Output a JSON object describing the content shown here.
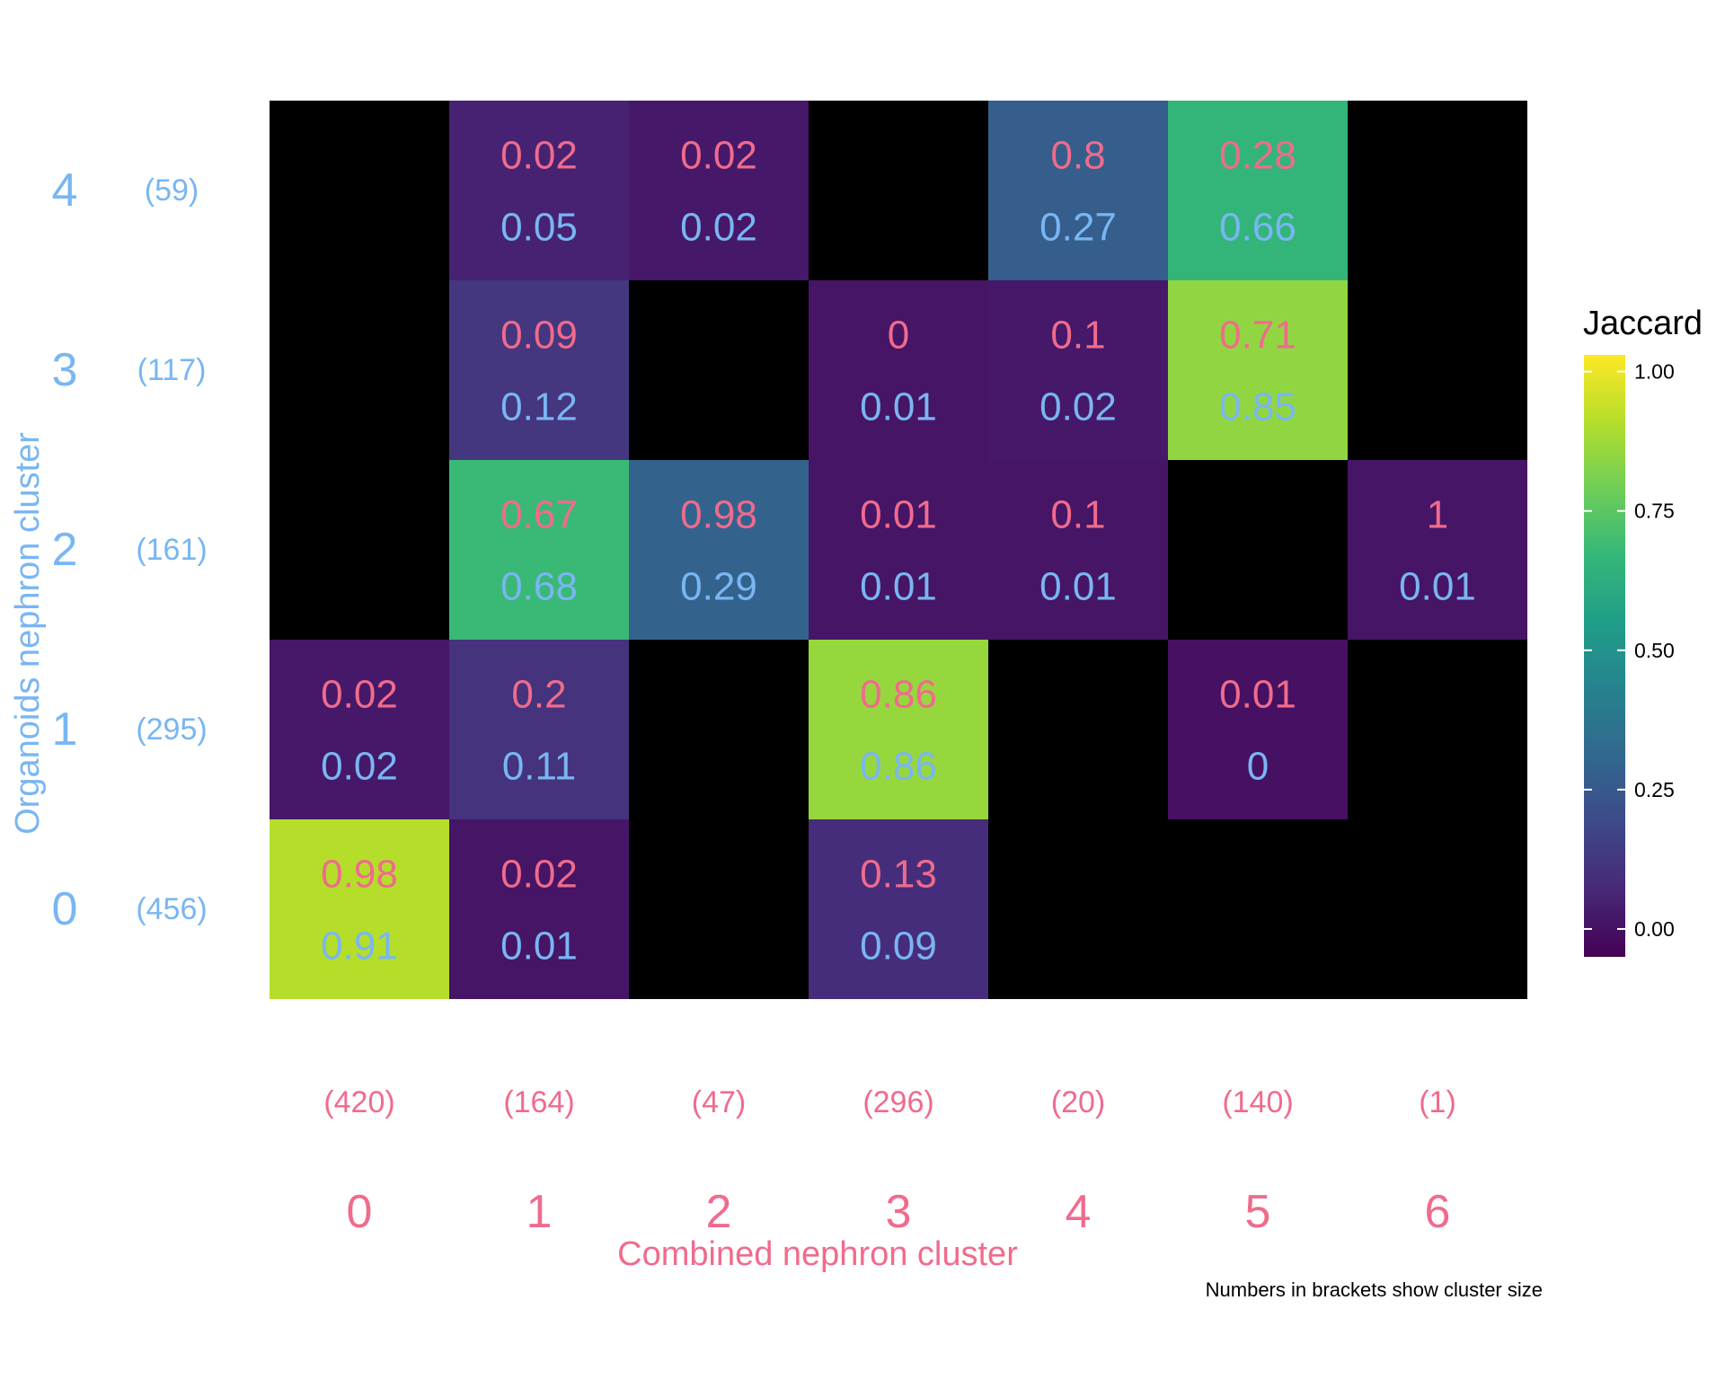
{
  "chart_data": {
    "type": "heatmap",
    "xlabel": "Combined nephron cluster",
    "ylabel": "Organoids nephron cluster",
    "x_categories": [
      "0",
      "1",
      "2",
      "3",
      "4",
      "5",
      "6"
    ],
    "x_sizes": [
      "(420)",
      "(164)",
      "(47)",
      "(296)",
      "(20)",
      "(140)",
      "(1)"
    ],
    "y_categories": [
      "0",
      "1",
      "2",
      "3",
      "4"
    ],
    "y_sizes": [
      "(456)",
      "(295)",
      "(161)",
      "(117)",
      "(59)"
    ],
    "legend": {
      "title": "Jaccard",
      "range": [
        -0.05,
        1.03
      ],
      "ticks": [
        {
          "value": 1.0,
          "label": "1.00"
        },
        {
          "value": 0.75,
          "label": "0.75"
        },
        {
          "value": 0.5,
          "label": "0.50"
        },
        {
          "value": 0.25,
          "label": "0.25"
        },
        {
          "value": 0.0,
          "label": "0.00"
        }
      ],
      "placement": "right"
    },
    "caption": "Numbers in brackets show cluster size",
    "cells": [
      {
        "x": "0",
        "y": "0",
        "value": 0.91,
        "top": "0.98",
        "bottom": "0.91"
      },
      {
        "x": "1",
        "y": "0",
        "value": 0.01,
        "top": "0.02",
        "bottom": "0.01"
      },
      {
        "x": "3",
        "y": "0",
        "value": 0.09,
        "top": "0.13",
        "bottom": "0.09"
      },
      {
        "x": "0",
        "y": "1",
        "value": 0.02,
        "top": "0.02",
        "bottom": "0.02"
      },
      {
        "x": "1",
        "y": "1",
        "value": 0.11,
        "top": "0.2",
        "bottom": "0.11"
      },
      {
        "x": "3",
        "y": "1",
        "value": 0.86,
        "top": "0.86",
        "bottom": "0.86"
      },
      {
        "x": "5",
        "y": "1",
        "value": 0.0,
        "top": "0.01",
        "bottom": "0"
      },
      {
        "x": "1",
        "y": "2",
        "value": 0.68,
        "top": "0.67",
        "bottom": "0.68"
      },
      {
        "x": "2",
        "y": "2",
        "value": 0.29,
        "top": "0.98",
        "bottom": "0.29"
      },
      {
        "x": "3",
        "y": "2",
        "value": 0.01,
        "top": "0.01",
        "bottom": "0.01"
      },
      {
        "x": "4",
        "y": "2",
        "value": 0.01,
        "top": "0.1",
        "bottom": "0.01"
      },
      {
        "x": "6",
        "y": "2",
        "value": 0.01,
        "top": "1",
        "bottom": "0.01"
      },
      {
        "x": "1",
        "y": "3",
        "value": 0.12,
        "top": "0.09",
        "bottom": "0.12"
      },
      {
        "x": "3",
        "y": "3",
        "value": 0.01,
        "top": "0",
        "bottom": "0.01"
      },
      {
        "x": "4",
        "y": "3",
        "value": 0.02,
        "top": "0.1",
        "bottom": "0.02"
      },
      {
        "x": "5",
        "y": "3",
        "value": 0.85,
        "top": "0.71",
        "bottom": "0.85"
      },
      {
        "x": "1",
        "y": "4",
        "value": 0.05,
        "top": "0.02",
        "bottom": "0.05"
      },
      {
        "x": "2",
        "y": "4",
        "value": 0.02,
        "top": "0.02",
        "bottom": "0.02"
      },
      {
        "x": "4",
        "y": "4",
        "value": 0.27,
        "top": "0.8",
        "bottom": "0.27"
      },
      {
        "x": "5",
        "y": "4",
        "value": 0.66,
        "top": "0.28",
        "bottom": "0.66"
      }
    ],
    "empty_cell_color": "#000000",
    "colors": {
      "x_axis_text": "#f06b8c",
      "y_axis_text": "#79b6f2",
      "top_value_text": "#f06b8c",
      "bottom_value_text": "#79b6f2",
      "viridis": [
        "#440154",
        "#482878",
        "#3e4989",
        "#31688e",
        "#26828e",
        "#1f9e89",
        "#35b779",
        "#6ece58",
        "#b5de2b",
        "#fde725"
      ]
    }
  }
}
